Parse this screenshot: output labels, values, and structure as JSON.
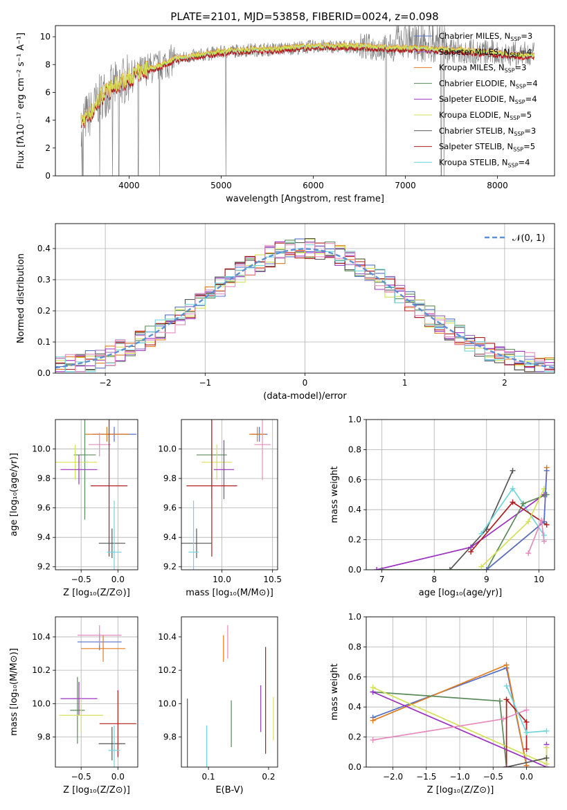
{
  "title": "PLATE=2101, MJD=53858, FIBERID=0024, z=0.098",
  "colors": {
    "Chabrier MILES": "#5470c6",
    "Salpeter MILES": "#9467bd",
    "Kroupa MILES": "#e07b1f",
    "Chabrier ELODIE": "#5a8a5a",
    "Salpeter ELODIE": "#9b30c0",
    "Kroupa ELODIE": "#d4e157",
    "Chabrier STELIB": "#555555",
    "Salpeter STELIB": "#b01c1c",
    "Kroupa STELIB": "#6fd6db",
    "extra_pink": "#e58bbd",
    "data_gray": "#808080",
    "normal_curve": "#5b8fd6",
    "grid": "#b0b0b0"
  },
  "chart_data": [
    {
      "id": "spectrum",
      "type": "line",
      "title": "PLATE=2101, MJD=53858, FIBERID=0024, z=0.098",
      "xlabel": "wavelength [Angstrom, rest frame]",
      "ylabel": "Flux [fλ10⁻¹⁷ erg cm⁻² s⁻¹ A⁻¹]",
      "xlim": [
        3200,
        8620
      ],
      "ylim": [
        0,
        10.8
      ],
      "xticks": [
        4000,
        5000,
        6000,
        7000,
        8000
      ],
      "yticks": [
        0,
        2,
        4,
        6,
        8,
        10
      ],
      "legend_position": "top-right",
      "legend": [
        {
          "label": "Chabrier MILES, N",
          "sub": "SSP",
          "suffix": "=3",
          "key": "Chabrier MILES"
        },
        {
          "label": "Salpeter MILES, N",
          "sub": "SSP",
          "suffix": "=4",
          "key": "Salpeter MILES"
        },
        {
          "label": "Kroupa MILES, N",
          "sub": "SSP",
          "suffix": "=3",
          "key": "Kroupa MILES"
        },
        {
          "label": "Chabrier ELODIE, N",
          "sub": "SSP",
          "suffix": "=4",
          "key": "Chabrier ELODIE"
        },
        {
          "label": "Salpeter ELODIE, N",
          "sub": "SSP",
          "suffix": "=4",
          "key": "Salpeter ELODIE"
        },
        {
          "label": "Kroupa ELODIE, N",
          "sub": "SSP",
          "suffix": "=5",
          "key": "Kroupa ELODIE"
        },
        {
          "label": "Chabrier STELIB, N",
          "sub": "SSP",
          "suffix": "=3",
          "key": "Chabrier STELIB"
        },
        {
          "label": "Salpeter STELIB, N",
          "sub": "SSP",
          "suffix": "=5",
          "key": "Salpeter STELIB"
        },
        {
          "label": "Kroupa STELIB, N",
          "sub": "SSP",
          "suffix": "=4",
          "key": "Kroupa STELIB"
        }
      ],
      "continuum": {
        "x": [
          3480,
          3600,
          3700,
          3800,
          3900,
          4000,
          4100,
          4200,
          4300,
          4500,
          4700,
          5000,
          5300,
          5600,
          6000,
          6400,
          6800,
          7200,
          7600,
          8000,
          8400
        ],
        "y": [
          3.9,
          4.6,
          5.8,
          6.2,
          6.7,
          7.0,
          7.4,
          7.7,
          7.8,
          8.4,
          8.6,
          8.9,
          9.05,
          9.1,
          9.3,
          9.3,
          9.2,
          9.1,
          9.0,
          8.8,
          8.6
        ]
      },
      "dips": [
        3490,
        3500,
        3680,
        3820,
        3890,
        4100,
        4330,
        5050,
        6790,
        7390,
        7420
      ],
      "model_lines": [
        {
          "key": "Kroupa STELIB",
          "offset": 0.0
        },
        {
          "key": "Salpeter STELIB",
          "offset": -0.15
        },
        {
          "key": "Kroupa MILES",
          "offset": 0.1
        },
        {
          "key": "Kroupa ELODIE",
          "offset": 0.05
        }
      ]
    },
    {
      "id": "residuals",
      "type": "histogram",
      "xlabel": "(data-model)/error",
      "ylabel": "Normed distribution",
      "xlim": [
        -2.5,
        2.5
      ],
      "ylim": [
        0,
        0.48
      ],
      "xticks": [
        -2,
        -1,
        0,
        1,
        2
      ],
      "yticks": [
        0.0,
        0.1,
        0.2,
        0.3,
        0.4
      ],
      "legend_position": "top-right",
      "curve_label": "𝒩(0, 1)",
      "bin_width": 0.1
    },
    {
      "id": "age_vs_Z",
      "type": "errorbar",
      "xlabel": "Z [log₁₀(Z/Z⊙)]",
      "ylabel": "age  [log₁₀(age/yr)]",
      "xlim": [
        -0.85,
        0.27
      ],
      "ylim": [
        9.18,
        10.2
      ],
      "xticks": [
        -0.5,
        0.0
      ],
      "yticks": [
        9.2,
        9.4,
        9.6,
        9.8,
        10.0
      ],
      "points": [
        {
          "key": "Chabrier MILES",
          "x": -0.05,
          "y": 10.1,
          "xerr": 0.3,
          "yerr": 0.05
        },
        {
          "key": "Kroupa MILES",
          "x": -0.15,
          "y": 10.1,
          "xerr": 0.3,
          "yerr": 0.05
        },
        {
          "key": "extra_pink",
          "x": -0.25,
          "y": 10.03,
          "xerr": 0.15,
          "yerr": 0.08
        },
        {
          "key": "Chabrier ELODIE",
          "x": -0.45,
          "y": 9.96,
          "xerr": 0.15,
          "yerr": 0.44
        },
        {
          "key": "Kroupa ELODIE",
          "x": -0.58,
          "y": 9.91,
          "xerr": 0.3,
          "yerr": 0.12
        },
        {
          "key": "Salpeter ELODIE",
          "x": -0.53,
          "y": 9.86,
          "xerr": 0.25,
          "yerr": 0.1
        },
        {
          "key": "Salpeter STELIB",
          "x": -0.12,
          "y": 9.75,
          "xerr": 0.25,
          "yerr": 0.48
        },
        {
          "key": "Chabrier STELIB",
          "x": -0.08,
          "y": 9.36,
          "xerr": 0.18,
          "yerr": 0.1
        },
        {
          "key": "Kroupa STELIB",
          "x": -0.05,
          "y": 9.3,
          "xerr": 0.1,
          "yerr": 0.35
        }
      ]
    },
    {
      "id": "age_vs_mass",
      "type": "errorbar",
      "xlabel": "mass [log₁₀(M/M⊙)]",
      "ylabel": "",
      "xlim": [
        9.6,
        10.55
      ],
      "ylim": [
        9.18,
        10.2
      ],
      "xticks": [
        10.0,
        10.5
      ],
      "yticks": [
        9.2,
        9.4,
        9.6,
        9.8,
        10.0
      ],
      "points": [
        {
          "key": "Chabrier MILES",
          "x": 10.37,
          "y": 10.1,
          "xerr": 0.08,
          "yerr": 0.05
        },
        {
          "key": "Kroupa MILES",
          "x": 10.35,
          "y": 10.1,
          "xerr": 0.08,
          "yerr": 0.05
        },
        {
          "key": "extra_pink",
          "x": 10.4,
          "y": 10.03,
          "xerr": 0.08,
          "yerr": 0.24
        },
        {
          "key": "Chabrier ELODIE",
          "x": 9.9,
          "y": 9.96,
          "xerr": 0.15,
          "yerr": 0.3
        },
        {
          "key": "Kroupa ELODIE",
          "x": 9.95,
          "y": 9.91,
          "xerr": 0.15,
          "yerr": 0.12
        },
        {
          "key": "Salpeter ELODIE",
          "x": 10.02,
          "y": 9.86,
          "xerr": 0.1,
          "yerr": 0.2
        },
        {
          "key": "Salpeter STELIB",
          "x": 9.9,
          "y": 9.75,
          "xerr": 0.25,
          "yerr": 0.48
        },
        {
          "key": "Chabrier STELIB",
          "x": 9.75,
          "y": 9.36,
          "xerr": 0.15,
          "yerr": 0.1
        },
        {
          "key": "Kroupa STELIB",
          "x": 9.72,
          "y": 9.3,
          "xerr": 0.05,
          "yerr": 0.35
        }
      ]
    },
    {
      "id": "weight_vs_age",
      "type": "line",
      "xlabel": "age  [log₁₀(age/yr)]",
      "ylabel": "mass weight",
      "xlim": [
        6.7,
        10.3
      ],
      "ylim": [
        0,
        1.0
      ],
      "xticks": [
        7,
        8,
        9,
        10
      ],
      "yticks": [
        0.0,
        0.2,
        0.4,
        0.6,
        0.8,
        1.0
      ],
      "series": [
        {
          "key": "Chabrier STELIB",
          "x": [
            8.3,
            9.0,
            9.5
          ],
          "y": [
            0.0,
            0.27,
            0.66
          ]
        },
        {
          "key": "Kroupa STELIB",
          "x": [
            8.9,
            9.5,
            10.1
          ],
          "y": [
            0.24,
            0.54,
            0.23
          ]
        },
        {
          "key": "Salpeter ELODIE",
          "x": [
            6.9,
            8.7,
            10.1
          ],
          "y": [
            0.0,
            0.15,
            0.5
          ]
        },
        {
          "key": "Chabrier ELODIE",
          "x": [
            7.0,
            9.0,
            9.7,
            10.15
          ],
          "y": [
            0.0,
            0.0,
            0.44,
            0.5
          ]
        },
        {
          "key": "Salpeter STELIB",
          "x": [
            8.7,
            9.5,
            10.15
          ],
          "y": [
            0.12,
            0.45,
            0.3
          ]
        },
        {
          "key": "Kroupa ELODIE",
          "x": [
            8.9,
            9.8,
            10.1
          ],
          "y": [
            0.02,
            0.32,
            0.54
          ]
        },
        {
          "key": "Kroupa MILES",
          "x": [
            9.0,
            10.1,
            10.15
          ],
          "y": [
            0.0,
            0.32,
            0.68
          ]
        },
        {
          "key": "Chabrier MILES",
          "x": [
            9.0,
            10.1,
            10.15
          ],
          "y": [
            0.0,
            0.32,
            0.66
          ]
        },
        {
          "key": "extra_pink",
          "x": [
            9.8,
            10.05,
            10.1
          ],
          "y": [
            0.11,
            0.33,
            0.19
          ]
        }
      ]
    },
    {
      "id": "mass_vs_Z",
      "type": "errorbar",
      "xlabel": "Z [log₁₀(Z/Z⊙)]",
      "ylabel": "mass [log₁₀(M/M⊙)]",
      "xlim": [
        -0.85,
        0.27
      ],
      "ylim": [
        9.62,
        10.52
      ],
      "xticks": [
        -0.5,
        0.0
      ],
      "yticks": [
        9.8,
        10.0,
        10.2,
        10.4
      ],
      "points": [
        {
          "key": "Chabrier MILES",
          "x": -0.25,
          "y": 10.37,
          "xerr": 0.3,
          "yerr": 0.05
        },
        {
          "key": "Kroupa MILES",
          "x": -0.2,
          "y": 10.33,
          "xerr": 0.3,
          "yerr": 0.08
        },
        {
          "key": "extra_pink",
          "x": -0.25,
          "y": 10.41,
          "xerr": 0.3,
          "yerr": 0.06
        },
        {
          "key": "Salpeter ELODIE",
          "x": -0.53,
          "y": 10.03,
          "xerr": 0.25,
          "yerr": 0.1
        },
        {
          "key": "Chabrier ELODIE",
          "x": -0.55,
          "y": 9.96,
          "xerr": 0.1,
          "yerr": 0.2
        },
        {
          "key": "Kroupa ELODIE",
          "x": -0.5,
          "y": 9.93,
          "xerr": 0.3,
          "yerr": 0.1
        },
        {
          "key": "Salpeter STELIB",
          "x": 0.0,
          "y": 9.88,
          "xerr": 0.25,
          "yerr": 0.2
        },
        {
          "key": "Chabrier STELIB",
          "x": -0.08,
          "y": 9.76,
          "xerr": 0.18,
          "yerr": 0.1
        },
        {
          "key": "Kroupa STELIB",
          "x": -0.05,
          "y": 9.72,
          "xerr": 0.08,
          "yerr": 0.15
        }
      ]
    },
    {
      "id": "mass_vs_ebv",
      "type": "errorbar",
      "xlabel": "E(B-V)",
      "ylabel": "",
      "xlim": [
        0.055,
        0.215
      ],
      "ylim": [
        9.62,
        10.52
      ],
      "xticks": [
        0.1,
        0.2
      ],
      "yticks": [
        9.8,
        10.0,
        10.2,
        10.4
      ],
      "points": [
        {
          "key": "Chabrier STELIB",
          "x": 0.065,
          "y": 9.76,
          "xerr": 0.0,
          "yerr": 0.27
        },
        {
          "key": "Kroupa STELIB",
          "x": 0.097,
          "y": 9.72,
          "xerr": 0.0,
          "yerr": 0.15
        },
        {
          "key": "Kroupa MILES",
          "x": 0.125,
          "y": 10.33,
          "xerr": 0.0,
          "yerr": 0.08
        },
        {
          "key": "extra_pink",
          "x": 0.132,
          "y": 10.37,
          "xerr": 0.0,
          "yerr": 0.1
        },
        {
          "key": "Chabrier ELODIE",
          "x": 0.138,
          "y": 9.88,
          "xerr": 0.0,
          "yerr": 0.14
        },
        {
          "key": "Salpeter ELODIE",
          "x": 0.187,
          "y": 9.97,
          "xerr": 0.0,
          "yerr": 0.14
        },
        {
          "key": "Salpeter STELIB",
          "x": 0.195,
          "y": 10.02,
          "xerr": 0.0,
          "yerr": 0.32
        },
        {
          "key": "Kroupa ELODIE",
          "x": 0.208,
          "y": 9.91,
          "xerr": 0.0,
          "yerr": 0.13
        }
      ]
    },
    {
      "id": "weight_vs_Z",
      "type": "line",
      "xlabel": "Z [log₁₀(Z/Z⊙)]",
      "ylabel": "mass weight",
      "xlim": [
        -2.4,
        0.42
      ],
      "ylim": [
        0,
        1.0
      ],
      "xticks": [
        -2.0,
        -1.5,
        -1.0,
        -0.5,
        0.0
      ],
      "yticks": [
        0.0,
        0.2,
        0.4,
        0.6,
        0.8,
        1.0
      ],
      "series": [
        {
          "key": "Chabrier MILES",
          "x": [
            -2.3,
            -0.3,
            0.0
          ],
          "y": [
            0.33,
            0.66,
            0.01
          ]
        },
        {
          "key": "Kroupa MILES",
          "x": [
            -2.3,
            -0.3,
            0.0
          ],
          "y": [
            0.31,
            0.68,
            0.01
          ]
        },
        {
          "key": "Chabrier ELODIE",
          "x": [
            -2.3,
            -0.4,
            -0.3
          ],
          "y": [
            0.5,
            0.44,
            0.0
          ]
        },
        {
          "key": "Salpeter ELODIE",
          "x": [
            -2.3,
            0.3,
            0.3
          ],
          "y": [
            0.5,
            0.0,
            0.15
          ]
        },
        {
          "key": "Kroupa ELODIE",
          "x": [
            -2.3,
            0.3,
            0.3
          ],
          "y": [
            0.53,
            0.02,
            0.13
          ]
        },
        {
          "key": "extra_pink",
          "x": [
            -2.3,
            -0.35,
            0.0
          ],
          "y": [
            0.18,
            0.32,
            0.38
          ]
        },
        {
          "key": "Salpeter STELIB",
          "x": [
            -0.3,
            -0.3,
            0.0,
            0.0
          ],
          "y": [
            0.0,
            0.45,
            0.3,
            0.12
          ]
        },
        {
          "key": "Kroupa STELIB",
          "x": [
            -0.3,
            0.0,
            0.3
          ],
          "y": [
            0.54,
            0.23,
            0.24
          ]
        },
        {
          "key": "Chabrier STELIB",
          "x": [
            -0.3,
            0.3
          ],
          "y": [
            0.0,
            0.06
          ]
        }
      ]
    }
  ]
}
